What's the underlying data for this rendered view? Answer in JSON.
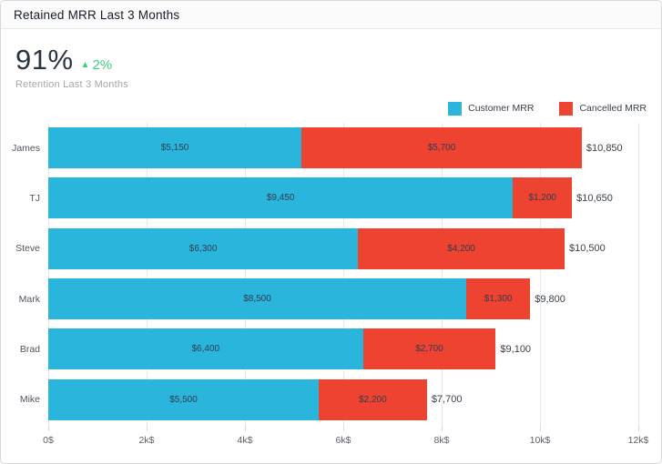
{
  "header": {
    "title": "Retained MRR Last 3 Months"
  },
  "kpi": {
    "value": "91%",
    "delta_arrow": "▲",
    "delta": "2%",
    "delta_color": "#3ecf7f",
    "subtitle": "Retention Last 3 Months"
  },
  "legend": [
    {
      "label": "Customer MRR",
      "color": "#29b5dc"
    },
    {
      "label": "Cancelled MRR",
      "color": "#ee4330"
    }
  ],
  "chart_data": {
    "type": "bar",
    "orientation": "horizontal",
    "stacked": true,
    "title": "Retained MRR Last 3 Months",
    "categories": [
      "James",
      "TJ",
      "Steve",
      "Mark",
      "Brad",
      "Mike"
    ],
    "series": [
      {
        "name": "Customer MRR",
        "color": "#29b5dc",
        "values": [
          5150,
          9450,
          6300,
          8500,
          6400,
          5500
        ]
      },
      {
        "name": "Cancelled MRR",
        "color": "#ee4330",
        "values": [
          5700,
          1200,
          4200,
          1300,
          2700,
          2200
        ]
      }
    ],
    "segment_labels": [
      [
        "$5,150",
        "$5,700"
      ],
      [
        "$9,450",
        "$1,200"
      ],
      [
        "$6,300",
        "$4,200"
      ],
      [
        "$8,500",
        "$1,300"
      ],
      [
        "$6,400",
        "$2,700"
      ],
      [
        "$5,500",
        "$2,200"
      ]
    ],
    "totals": [
      10850,
      10650,
      10500,
      9800,
      9100,
      7700
    ],
    "total_labels": [
      "$10,850",
      "$10,650",
      "$10,500",
      "$9,800",
      "$9,100",
      "$7,700"
    ],
    "xlabel": "",
    "ylabel": "",
    "xlim": [
      0,
      12000
    ],
    "x_ticks": [
      "0$",
      "2k$",
      "4k$",
      "6k$",
      "8k$",
      "10k$",
      "12k$"
    ],
    "x_tick_values": [
      0,
      2000,
      4000,
      6000,
      8000,
      10000,
      12000
    ],
    "grid": true,
    "legend_position": "top-right"
  }
}
